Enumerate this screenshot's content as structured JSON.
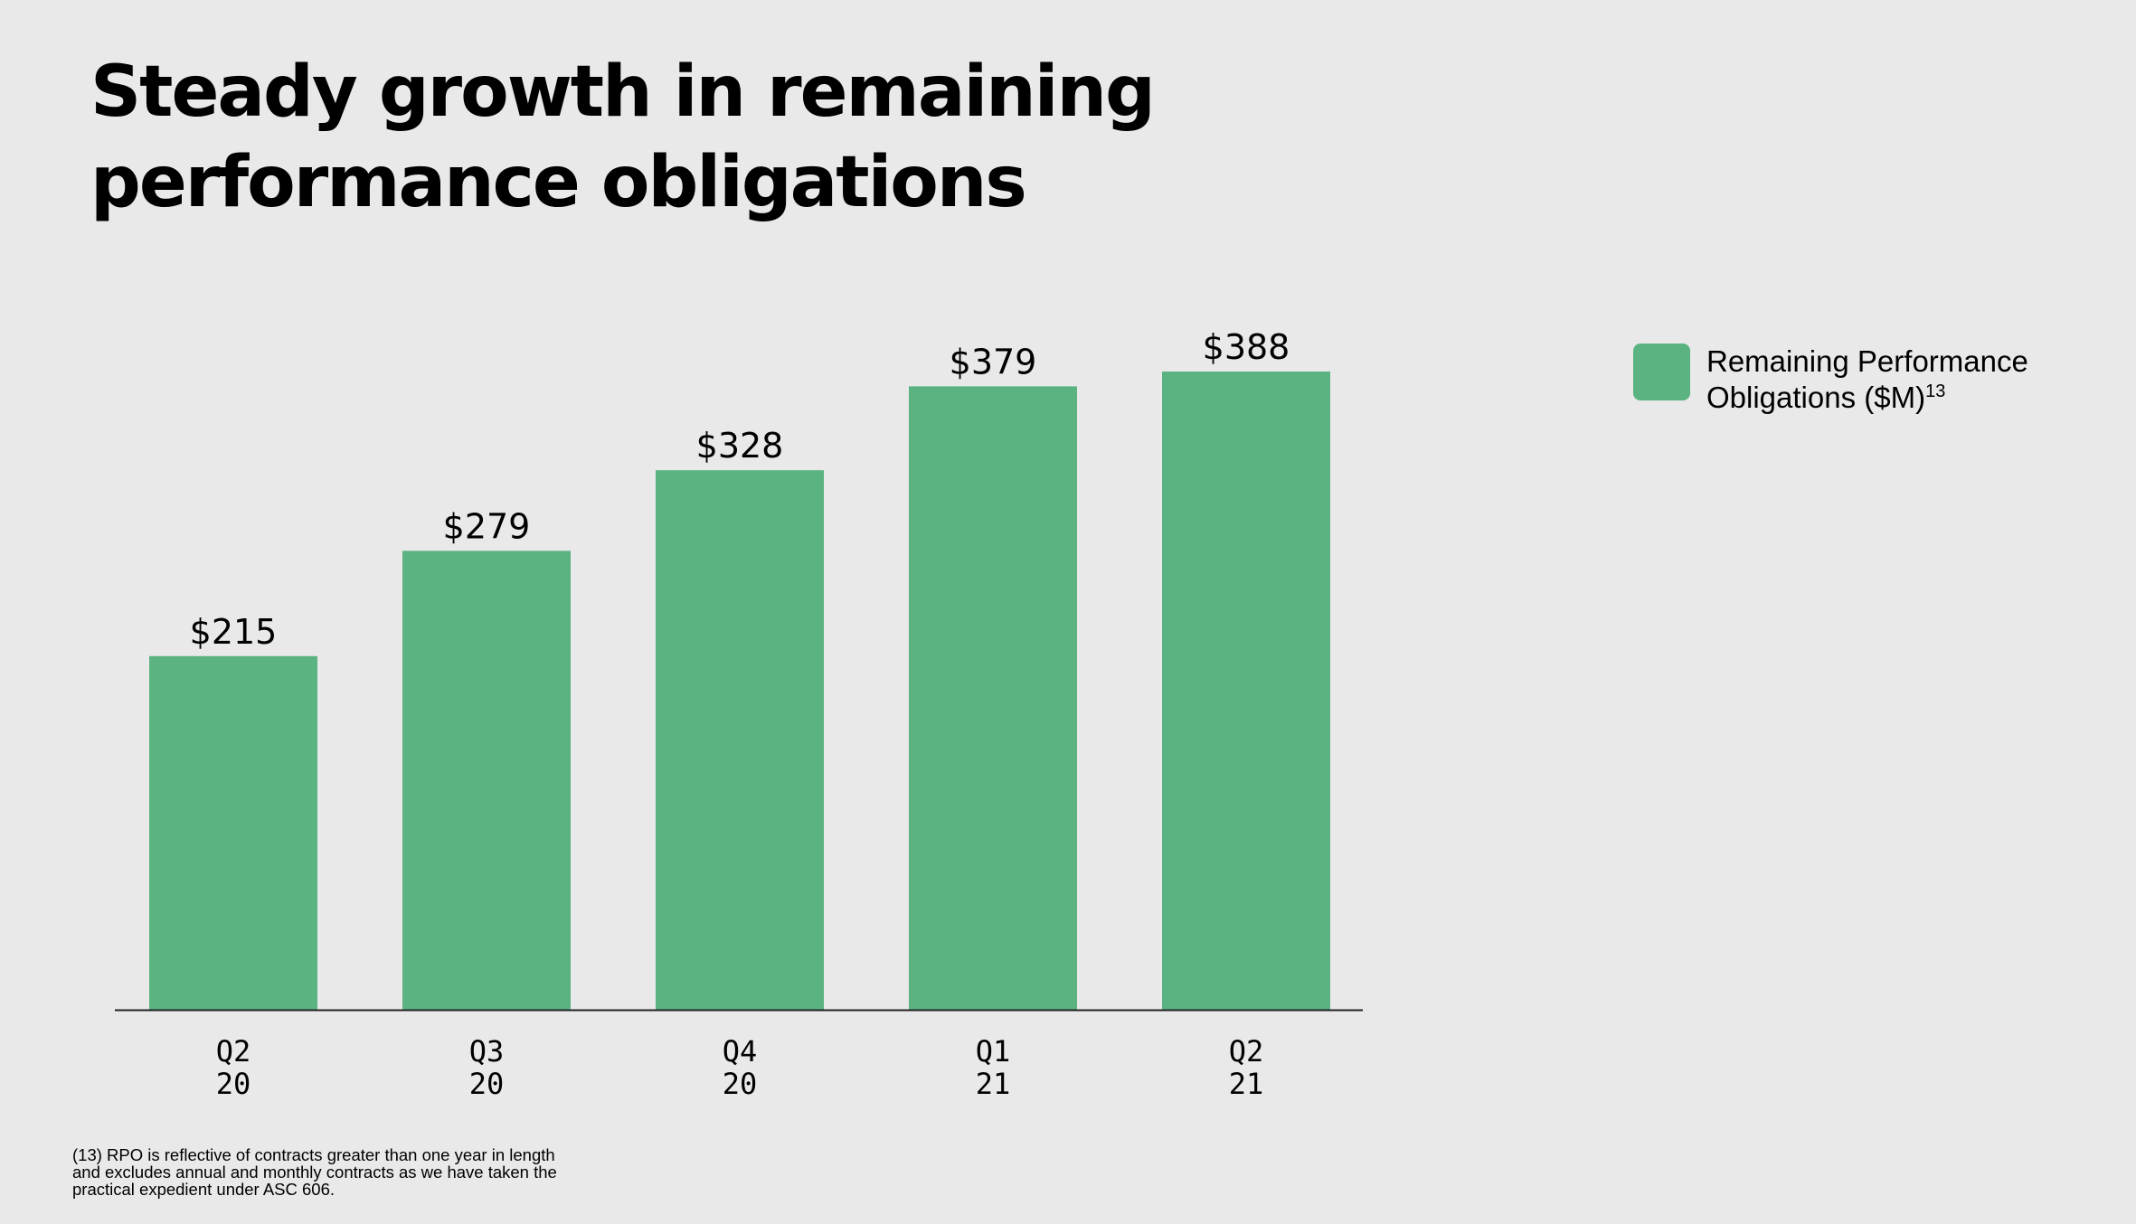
{
  "title": "Steady growth in remaining performance obligations",
  "colors": {
    "background": "#e9e9e9",
    "bar": "#5bb381",
    "axis": "#222222",
    "text": "#000000"
  },
  "legend": {
    "label_line1": "Remaining Performance",
    "label_line2": "Obligations ($M)",
    "superscript": "13"
  },
  "footnote": "(13) RPO is reflective of contracts greater than one year in length and excludes annual and monthly contracts as we have taken the practical expedient under ASC 606.",
  "chart_data": {
    "type": "bar",
    "title": "Steady growth in remaining performance obligations",
    "categories": [
      [
        "Q2",
        "20"
      ],
      [
        "Q3",
        "20"
      ],
      [
        "Q4",
        "20"
      ],
      [
        "Q1",
        "21"
      ],
      [
        "Q2",
        "21"
      ]
    ],
    "series": [
      {
        "name": "Remaining Performance Obligations ($M)",
        "values": [
          215,
          279,
          328,
          379,
          388
        ],
        "labels": [
          "$215",
          "$279",
          "$328",
          "$379",
          "$388"
        ]
      }
    ],
    "xlabel": "",
    "ylabel": "",
    "ylim": [
      0,
      388
    ],
    "grid": false,
    "legend_position": "right"
  }
}
